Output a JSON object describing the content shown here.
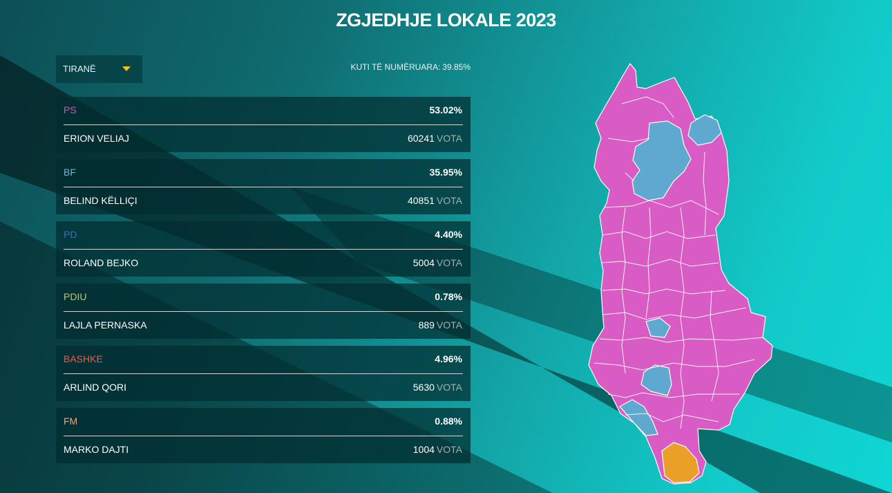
{
  "title": "ZGJEDHJE LOKALE 2023",
  "municipality_select": {
    "value": "TIRANË"
  },
  "counted": {
    "label": "KUTI TË NUMËRUARA:",
    "value": "39.85%"
  },
  "results": [
    {
      "party": "PS",
      "party_color": "#e84cc0",
      "percent": "53.02%",
      "candidate": "ERION VELIAJ",
      "votes": "60241",
      "votes_unit": "VOTA"
    },
    {
      "party": "BF",
      "party_color": "#6fb2dc",
      "percent": "35.95%",
      "candidate": "BELIND KËLLIÇI",
      "votes": "40851",
      "votes_unit": "VOTA"
    },
    {
      "party": "PD",
      "party_color": "#2f6fd9",
      "percent": "4.40%",
      "candidate": "ROLAND BEJKO",
      "votes": "5004",
      "votes_unit": "VOTA"
    },
    {
      "party": "PDIU",
      "party_color": "#c9c94a",
      "percent": "0.78%",
      "candidate": "LAJLA PERNASKA",
      "votes": "889",
      "votes_unit": "VOTA"
    },
    {
      "party": "BASHKE",
      "party_color": "#f05a4a",
      "percent": "4.96%",
      "candidate": "ARLIND QORI",
      "votes": "5630",
      "votes_unit": "VOTA"
    },
    {
      "party": "FM",
      "party_color": "#f2a28a",
      "percent": "0.88%",
      "candidate": "MARKO DAJTI",
      "votes": "1004",
      "votes_unit": "VOTA"
    }
  ],
  "map_colors": {
    "ps": "#d95cc4",
    "bf": "#5fa8d0",
    "other": "#e8a028",
    "border": "#ffffff"
  }
}
